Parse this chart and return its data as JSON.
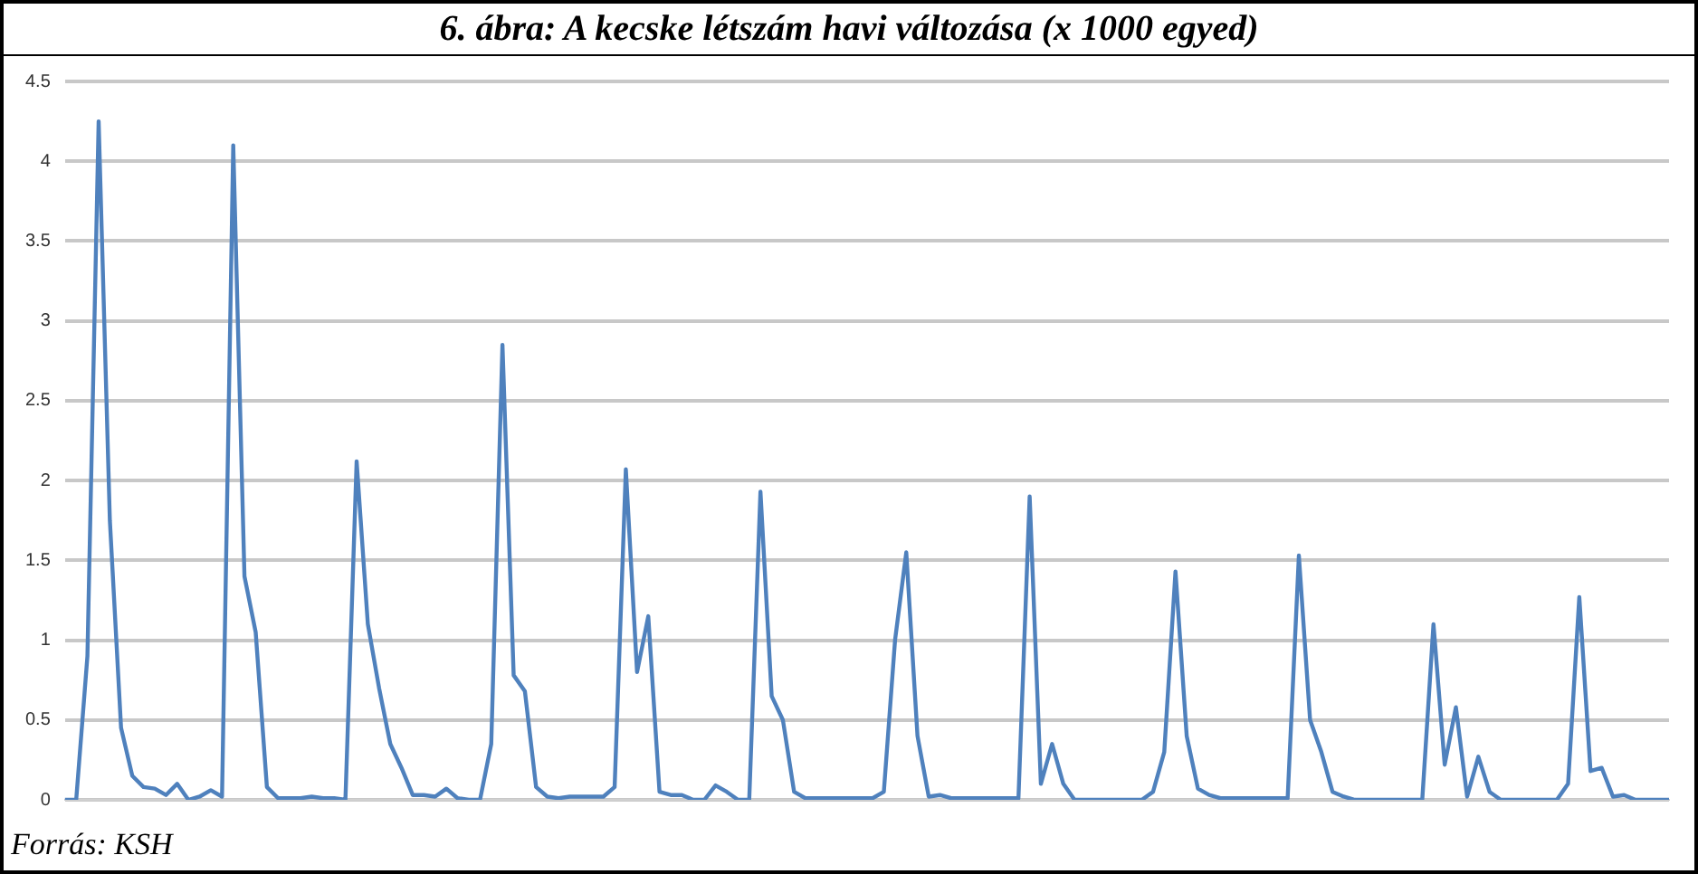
{
  "chart_data": {
    "type": "line",
    "title": "6. ábra: A kecske létszám havi változása (x 1000 egyed)",
    "annotations": [
      "Forrás: KSH"
    ],
    "categories": [
      null,
      null,
      null,
      null,
      null,
      null,
      null,
      null,
      null,
      null,
      null,
      null,
      null,
      null,
      null,
      null,
      null,
      null,
      null,
      null,
      null,
      null,
      null,
      null,
      null,
      null,
      null,
      null,
      null,
      null,
      null,
      null,
      null,
      null,
      null,
      null,
      null,
      null,
      null,
      null,
      null,
      null,
      null,
      null,
      null,
      null,
      null,
      null,
      null,
      null,
      null,
      null,
      null,
      null,
      null,
      null,
      null,
      null,
      null,
      null,
      null,
      null,
      null,
      null,
      null,
      null,
      null,
      null,
      null,
      null,
      null,
      null,
      null,
      null,
      null,
      null,
      null,
      null,
      null,
      null,
      null,
      null,
      null,
      null,
      null,
      null,
      null,
      null,
      null,
      null,
      null,
      null,
      null,
      null,
      null,
      null,
      null,
      null,
      null,
      null,
      null,
      null,
      null,
      null,
      null,
      null,
      null,
      null,
      null,
      null,
      null,
      null,
      null,
      null,
      null,
      null,
      null,
      null,
      null,
      null,
      null,
      null,
      null,
      null,
      null,
      null,
      null,
      null,
      null,
      null,
      null,
      null,
      null,
      null,
      null,
      null,
      null,
      null,
      null,
      null,
      null,
      null,
      null,
      null
    ],
    "series": [
      {
        "color": "#4f81bd",
        "values": [
          0,
          0,
          0.9,
          4.25,
          1.75,
          0.45,
          0.15,
          0.08,
          0.07,
          0.03,
          0.1,
          0,
          0.02,
          0.06,
          0.02,
          4.1,
          1.4,
          1.05,
          0.08,
          0.01,
          0.01,
          0.01,
          0.02,
          0.01,
          0.01,
          0,
          2.12,
          1.1,
          0.7,
          0.35,
          0.2,
          0.03,
          0.03,
          0.02,
          0.07,
          0.01,
          0,
          0,
          0.35,
          2.85,
          0.78,
          0.68,
          0.08,
          0.02,
          0.01,
          0.02,
          0.02,
          0.02,
          0.02,
          0.08,
          2.07,
          0.8,
          1.15,
          0.05,
          0.03,
          0.03,
          0,
          0,
          0.09,
          0.05,
          0,
          0,
          1.93,
          0.65,
          0.5,
          0.05,
          0.01,
          0.01,
          0.01,
          0.01,
          0.01,
          0.01,
          0.01,
          0.05,
          1,
          1.55,
          0.4,
          0.02,
          0.03,
          0.01,
          0.01,
          0.01,
          0.01,
          0.01,
          0.01,
          0.01,
          1.9,
          0.1,
          0.35,
          0.1,
          0,
          0,
          0,
          0,
          0,
          0,
          0,
          0.05,
          0.3,
          1.43,
          0.4,
          0.07,
          0.03,
          0.01,
          0.01,
          0.01,
          0.01,
          0.01,
          0.01,
          0.01,
          1.53,
          0.5,
          0.3,
          0.05,
          0.02,
          0,
          0,
          0,
          0,
          0,
          0,
          0,
          1.1,
          0.22,
          0.58,
          0.02,
          0.27,
          0.05,
          0,
          0,
          0,
          0,
          0,
          0,
          0.1,
          1.27,
          0.18,
          0.2,
          0.02,
          0.03,
          0,
          0,
          0,
          0
        ]
      }
    ],
    "ylim": [
      0,
      4.5
    ],
    "yticks": [
      0,
      0.5,
      1,
      1.5,
      2,
      2.5,
      3,
      3.5,
      4,
      4.5
    ],
    "grid": "y",
    "legend": false,
    "marker": "none",
    "line_style": "solid"
  }
}
